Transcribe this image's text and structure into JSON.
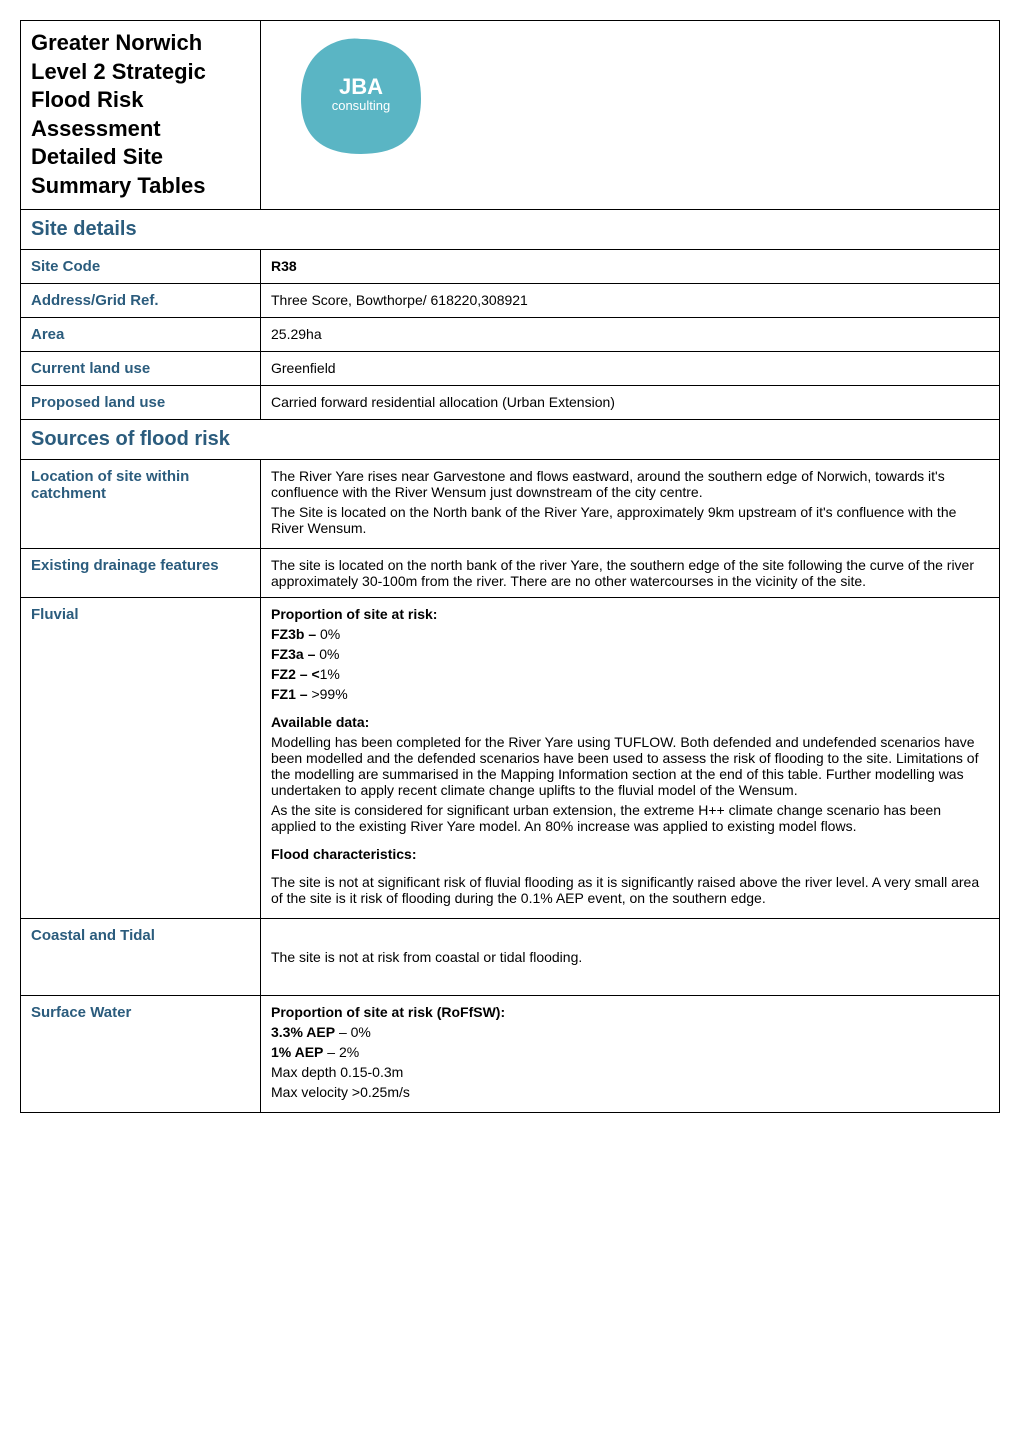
{
  "header": {
    "title": "Greater Norwich Level 2 Strategic Flood Risk Assessment Detailed Site Summary Tables",
    "logo_main": "JBA",
    "logo_sub": "consulting",
    "logo_color": "#5ab5c4"
  },
  "site_details": {
    "section_title": "Site details",
    "rows": [
      {
        "label": "Site Code",
        "value": "R38",
        "bold": true
      },
      {
        "label": "Address/Grid Ref.",
        "value": "Three Score, Bowthorpe/ 618220,308921"
      },
      {
        "label": "Area",
        "value": "25.29ha"
      },
      {
        "label": "Current land use",
        "value": "Greenfield"
      },
      {
        "label": "Proposed land use",
        "value": "Carried forward residential allocation (Urban Extension)"
      }
    ]
  },
  "sources": {
    "section_title": "Sources of flood risk",
    "location": {
      "label": "Location of site within catchment",
      "text": "The River Yare rises near Garvestone and flows eastward, around the southern edge of Norwich, towards it's confluence with the River Wensum just downstream of the city centre.\nThe Site is located on the North bank of the River Yare, approximately 9km upstream of it's confluence with the River Wensum."
    },
    "drainage": {
      "label": "Existing drainage features",
      "text": "The site is located on the north bank of the river Yare, the southern edge of the site following the curve of the river approximately 30-100m from the river. There are no other watercourses in the vicinity of the site."
    },
    "fluvial": {
      "label": "Fluvial",
      "proportion_title": "Proportion of site at risk:",
      "proportions": [
        {
          "label": "FZ3b –",
          "value": " 0%"
        },
        {
          "label": "FZ3a –",
          "value": " 0%"
        },
        {
          "label": "FZ2 – <",
          "value": "1%"
        },
        {
          "label": "FZ1 –",
          "value": " >99%"
        }
      ],
      "available_title": "Available data:",
      "available_text": "Modelling has been completed for the River Yare using TUFLOW. Both defended and undefended scenarios have been modelled and the defended scenarios have been used to assess the risk of flooding to the site. Limitations of the modelling are summarised in the Mapping Information section at the end of this table. Further modelling was undertaken to apply recent climate change uplifts to the fluvial model of the Wensum.\nAs the site is considered for significant urban extension, the extreme H++ climate change scenario has been applied to the existing River Yare model. An 80% increase was applied to existing model flows.",
      "flood_title": "Flood characteristics:",
      "flood_text": "The site is not at significant risk of fluvial flooding as it is significantly raised above the river level. A very small area of the site is it risk of flooding during the 0.1% AEP event, on the southern edge."
    },
    "coastal": {
      "label": "Coastal and Tidal",
      "text": "The site is not at risk from coastal or tidal flooding."
    },
    "surface": {
      "label": "Surface Water",
      "proportion_title": "Proportion of site at risk (RoFfSW):",
      "items": [
        {
          "label": "3.3% AEP",
          "value": " – 0%"
        },
        {
          "label": "1% AEP",
          "value": " – 2%"
        },
        {
          "plain": "Max depth 0.15-0.3m"
        },
        {
          "plain": "Max velocity >0.25m/s"
        }
      ]
    }
  },
  "colors": {
    "section_header": "#2b5c7d",
    "label": "#2b5c7d",
    "border": "#000000",
    "background": "#ffffff"
  }
}
